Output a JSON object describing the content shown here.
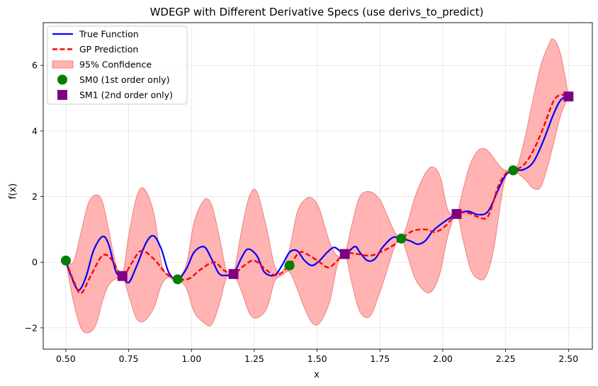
{
  "chart_data": {
    "type": "line",
    "title": "WDEGP with Different Derivative Specs (use derivs_to_predict)",
    "xlabel": "x",
    "ylabel": "f(x)",
    "xlim": [
      0.41,
      2.595
    ],
    "ylim": [
      -2.65,
      7.3
    ],
    "grid": true,
    "legend_position": "top-left",
    "x_ticks": [
      0.5,
      0.75,
      1.0,
      1.25,
      1.5,
      1.75,
      2.0,
      2.25,
      2.5
    ],
    "x_tick_labels": [
      "0.50",
      "0.75",
      "1.00",
      "1.25",
      "1.50",
      "1.75",
      "2.00",
      "2.25",
      "2.50"
    ],
    "y_ticks": [
      -2,
      0,
      2,
      4,
      6
    ],
    "y_tick_labels": [
      "−2",
      "0",
      "2",
      "4",
      "6"
    ],
    "legend": [
      {
        "label": "True Function",
        "kind": "line",
        "color": "#0000ff"
      },
      {
        "label": "GP Prediction",
        "kind": "dashed",
        "color": "#ff0000"
      },
      {
        "label": "95% Confidence",
        "kind": "band",
        "color": "#ff9999"
      },
      {
        "label": "SM0 (1st order only)",
        "kind": "circle",
        "color": "#008000"
      },
      {
        "label": "SM1 (2nd order only)",
        "kind": "square",
        "color": "#800080"
      }
    ],
    "series": [
      {
        "name": "True Function",
        "color": "#0000ff",
        "x": [
          0.5,
          0.52,
          0.55,
          0.58,
          0.61,
          0.645,
          0.67,
          0.7,
          0.725,
          0.75,
          0.78,
          0.82,
          0.85,
          0.88,
          0.91,
          0.945,
          0.98,
          1.01,
          1.05,
          1.08,
          1.11,
          1.14,
          1.167,
          1.2,
          1.225,
          1.26,
          1.29,
          1.33,
          1.36,
          1.39,
          1.42,
          1.45,
          1.48,
          1.51,
          1.54,
          1.57,
          1.61,
          1.65,
          1.67,
          1.7,
          1.73,
          1.76,
          1.8,
          1.835,
          1.87,
          1.9,
          1.93,
          1.96,
          2.0,
          2.055,
          2.1,
          2.14,
          2.18,
          2.22,
          2.25,
          2.28,
          2.32,
          2.36,
          2.4,
          2.44,
          2.47,
          2.5
        ],
        "y": [
          0.05,
          -0.4,
          -0.85,
          -0.45,
          0.35,
          0.78,
          0.55,
          -0.3,
          -0.42,
          -0.62,
          -0.15,
          0.6,
          0.8,
          0.4,
          -0.32,
          -0.52,
          -0.2,
          0.3,
          0.47,
          0.1,
          -0.35,
          -0.4,
          -0.36,
          0.15,
          0.4,
          0.2,
          -0.3,
          -0.4,
          -0.1,
          0.3,
          0.35,
          0.05,
          -0.1,
          0.05,
          0.3,
          0.45,
          0.25,
          0.48,
          0.3,
          0.05,
          0.1,
          0.45,
          0.75,
          0.72,
          0.65,
          0.55,
          0.65,
          0.95,
          1.2,
          1.47,
          1.55,
          1.45,
          1.55,
          2.2,
          2.65,
          2.8,
          2.82,
          3.05,
          3.7,
          4.5,
          4.95,
          5.05
        ]
      },
      {
        "name": "GP Prediction",
        "color": "#ff0000",
        "x": [
          0.5,
          0.53,
          0.56,
          0.6,
          0.645,
          0.68,
          0.725,
          0.76,
          0.8,
          0.85,
          0.9,
          0.945,
          0.99,
          1.04,
          1.09,
          1.13,
          1.167,
          1.21,
          1.25,
          1.3,
          1.34,
          1.39,
          1.43,
          1.47,
          1.51,
          1.55,
          1.61,
          1.66,
          1.71,
          1.75,
          1.8,
          1.835,
          1.88,
          1.93,
          1.97,
          2.01,
          2.055,
          2.1,
          2.14,
          2.18,
          2.22,
          2.25,
          2.28,
          2.32,
          2.36,
          2.4,
          2.44,
          2.47,
          2.5
        ],
        "y": [
          0.05,
          -0.55,
          -0.95,
          -0.4,
          0.2,
          0.1,
          -0.42,
          -0.05,
          0.35,
          0.1,
          -0.35,
          -0.52,
          -0.5,
          -0.2,
          0.0,
          -0.25,
          -0.36,
          -0.1,
          0.05,
          -0.25,
          -0.4,
          -0.1,
          0.3,
          0.2,
          0.0,
          -0.15,
          0.25,
          0.25,
          0.2,
          0.3,
          0.5,
          0.72,
          0.95,
          1.0,
          0.92,
          1.1,
          1.47,
          1.5,
          1.38,
          1.4,
          2.3,
          2.7,
          2.8,
          2.95,
          3.4,
          4.1,
          4.9,
          5.1,
          5.05
        ]
      }
    ],
    "confidence_band": {
      "name": "95% Confidence",
      "x": [
        0.5,
        0.53,
        0.56,
        0.59,
        0.62,
        0.645,
        0.67,
        0.7,
        0.725,
        0.75,
        0.78,
        0.81,
        0.85,
        0.88,
        0.91,
        0.945,
        0.98,
        1.01,
        1.05,
        1.08,
        1.11,
        1.14,
        1.167,
        1.2,
        1.23,
        1.26,
        1.3,
        1.33,
        1.36,
        1.39,
        1.42,
        1.45,
        1.48,
        1.51,
        1.55,
        1.58,
        1.61,
        1.64,
        1.67,
        1.71,
        1.75,
        1.78,
        1.81,
        1.835,
        1.86,
        1.89,
        1.93,
        1.96,
        1.99,
        2.02,
        2.055,
        2.08,
        2.11,
        2.14,
        2.17,
        2.2,
        2.23,
        2.25,
        2.28,
        2.3,
        2.33,
        2.36,
        2.39,
        2.42,
        2.44,
        2.47,
        2.5
      ],
      "upper": [
        0.05,
        0.0,
        0.9,
        1.8,
        2.05,
        1.85,
        1.0,
        -0.1,
        -0.4,
        0.8,
        1.95,
        2.25,
        1.5,
        0.0,
        -0.45,
        -0.5,
        -0.05,
        1.2,
        1.9,
        1.75,
        0.8,
        -0.3,
        -0.36,
        1.0,
        2.0,
        2.15,
        1.0,
        -0.1,
        -0.3,
        0.4,
        1.5,
        1.9,
        1.95,
        1.6,
        0.6,
        0.2,
        0.25,
        1.2,
        2.0,
        2.15,
        1.9,
        1.4,
        0.9,
        0.72,
        1.2,
        2.0,
        2.7,
        2.9,
        2.6,
        1.6,
        1.47,
        2.2,
        3.0,
        3.4,
        3.45,
        3.2,
        2.9,
        2.8,
        2.8,
        3.0,
        3.9,
        5.0,
        6.0,
        6.6,
        6.8,
        6.3,
        5.05
      ],
      "lower": [
        0.05,
        -1.2,
        -2.0,
        -2.15,
        -1.9,
        -1.2,
        -0.7,
        -0.5,
        -0.42,
        -1.0,
        -1.7,
        -1.8,
        -1.4,
        -0.7,
        -0.45,
        -0.52,
        -0.8,
        -1.5,
        -1.85,
        -1.9,
        -1.3,
        -0.45,
        -0.36,
        -0.9,
        -1.55,
        -1.7,
        -1.4,
        -0.6,
        -0.4,
        -0.3,
        -0.8,
        -1.4,
        -1.85,
        -1.85,
        -1.2,
        -0.1,
        0.25,
        -0.7,
        -1.5,
        -1.65,
        -0.9,
        -0.2,
        0.5,
        0.72,
        0.2,
        -0.5,
        -0.9,
        -0.85,
        -0.3,
        0.8,
        1.47,
        0.7,
        -0.2,
        -0.5,
        -0.45,
        0.3,
        1.8,
        2.6,
        2.8,
        2.7,
        2.5,
        2.25,
        2.3,
        3.0,
        3.6,
        4.5,
        5.05
      ]
    },
    "markers": [
      {
        "name": "SM0 (1st order only)",
        "shape": "circle",
        "color": "#008000",
        "x": [
          0.5,
          0.945,
          1.39,
          1.835,
          2.28
        ],
        "y": [
          0.05,
          -0.52,
          -0.1,
          0.72,
          2.8
        ]
      },
      {
        "name": "SM1 (2nd order only)",
        "shape": "square",
        "color": "#800080",
        "x": [
          0.725,
          1.167,
          1.61,
          2.055,
          2.5
        ],
        "y": [
          -0.42,
          -0.36,
          0.25,
          1.47,
          5.05
        ]
      }
    ]
  }
}
